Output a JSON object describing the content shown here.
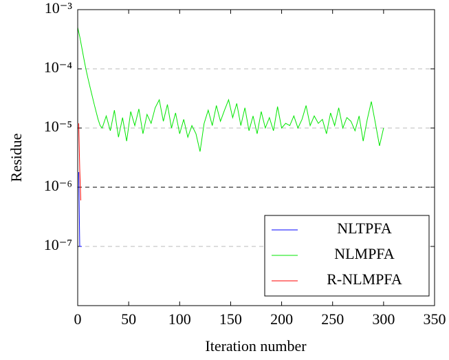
{
  "chart_data": {
    "type": "line",
    "xlabel": "Iteration number",
    "ylabel": "Residue",
    "xlim": [
      0,
      350
    ],
    "xticks": [
      0,
      50,
      100,
      150,
      200,
      250,
      300,
      350
    ],
    "ylim": [
      1e-08,
      0.001
    ],
    "ylog": true,
    "grid": true,
    "yticks": [
      {
        "value": 1e-07,
        "label": "10⁻⁷"
      },
      {
        "value": 1e-06,
        "label": "10⁻⁶"
      },
      {
        "value": 1e-05,
        "label": "10⁻⁵"
      },
      {
        "value": 0.0001,
        "label": "10⁻⁴"
      },
      {
        "value": 0.001,
        "label": "10⁻³"
      }
    ],
    "reference_line": 1e-06,
    "legend": "lower right",
    "series": [
      {
        "name": "NLTPFA",
        "color": "#0000ff",
        "x": [
          1,
          2,
          4
        ],
        "values": [
          1.8e-06,
          1e-07,
          1e-07
        ]
      },
      {
        "name": "NLMPFA",
        "color": "#00e600",
        "x": [
          0,
          2,
          4,
          6,
          8,
          10,
          12,
          14,
          16,
          18,
          20,
          22,
          24,
          28,
          32,
          36,
          40,
          44,
          48,
          52,
          56,
          60,
          64,
          68,
          72,
          76,
          80,
          84,
          88,
          92,
          96,
          100,
          104,
          108,
          112,
          116,
          120,
          124,
          128,
          132,
          136,
          140,
          144,
          148,
          152,
          156,
          160,
          164,
          168,
          172,
          176,
          180,
          184,
          188,
          192,
          196,
          200,
          204,
          208,
          212,
          216,
          220,
          224,
          228,
          232,
          236,
          240,
          244,
          248,
          252,
          256,
          260,
          264,
          268,
          272,
          276,
          280,
          284,
          288,
          292,
          296,
          300
        ],
        "values": [
          0.0005,
          0.00035,
          0.00023,
          0.00015,
          0.0001,
          7e-05,
          5e-05,
          3.6e-05,
          2.6e-05,
          1.9e-05,
          1.4e-05,
          1.1e-05,
          1e-05,
          1.6e-05,
          9e-06,
          2e-05,
          7e-06,
          1.5e-05,
          6e-06,
          1.9e-05,
          1.1e-05,
          2.1e-05,
          8e-06,
          1.7e-05,
          1.2e-05,
          2.2e-05,
          3e-05,
          1.3e-05,
          2.5e-05,
          1e-05,
          1.8e-05,
          8e-06,
          1.4e-05,
          7e-06,
          1.1e-05,
          8e-06,
          4e-06,
          1.2e-05,
          2e-05,
          1.1e-05,
          2.4e-05,
          1.3e-05,
          2e-05,
          3e-05,
          1.5e-05,
          2.6e-05,
          1.1e-05,
          2.2e-05,
          9e-06,
          1.6e-05,
          8e-06,
          1.9e-05,
          1e-05,
          1.5e-05,
          9e-06,
          2.3e-05,
          1e-05,
          1.2e-05,
          1.1e-05,
          1.6e-05,
          1e-05,
          1.4e-05,
          2.4e-05,
          1.1e-05,
          1.6e-05,
          1.2e-05,
          1.4e-05,
          8e-06,
          1.8e-05,
          1.1e-05,
          2.2e-05,
          1e-05,
          1.5e-05,
          1.3e-05,
          9e-06,
          1.6e-05,
          6e-06,
          1.4e-05,
          2.8e-05,
          1.2e-05,
          5e-06,
          1e-05
        ]
      },
      {
        "name": "R-NLMPFA",
        "color": "#ff0000",
        "x": [
          1,
          2,
          3
        ],
        "values": [
          1.2e-05,
          2e-06,
          6e-07
        ]
      }
    ]
  }
}
